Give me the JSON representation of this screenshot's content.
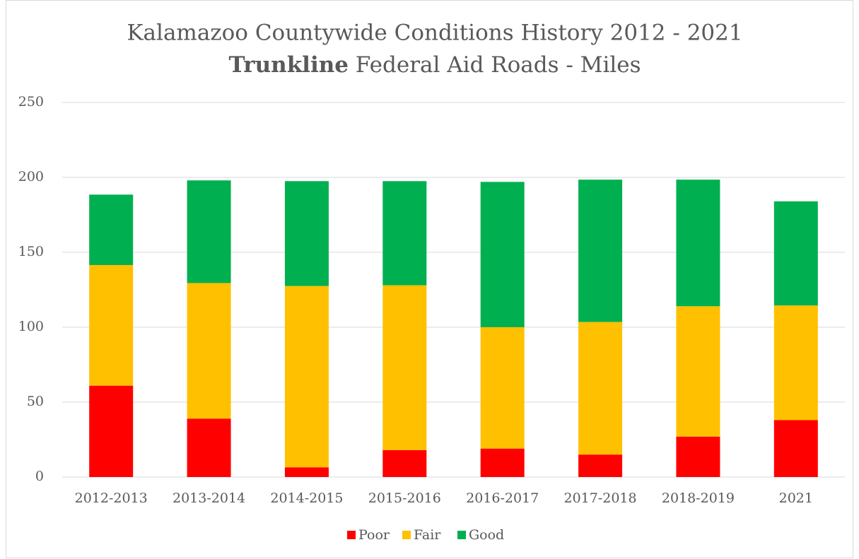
{
  "chart_data": {
    "type": "stacked_bar",
    "title": "Kalamazoo Countywide Conditions History 2012 - 2021",
    "subtitle_bold": "Trunkline",
    "subtitle": "Federal Aid Roads - Miles",
    "categories": [
      "2012-2013",
      "2013-2014",
      "2014-2015",
      "2015-2016",
      "2016-2017",
      "2017-2018",
      "2018-2019",
      "2021"
    ],
    "series": [
      {
        "name": "Poor",
        "color": "#ff0000",
        "values": [
          61,
          39,
          6.5,
          18,
          19,
          15,
          27,
          38
        ]
      },
      {
        "name": "Fair",
        "color": "#ffc000",
        "values": [
          80.5,
          90.5,
          121,
          110,
          81,
          88.5,
          87,
          76.5
        ]
      },
      {
        "name": "Good",
        "color": "#00b050",
        "values": [
          47,
          68.5,
          70,
          69.5,
          97,
          95,
          84.5,
          69.5
        ]
      }
    ],
    "ylim": [
      0,
      250
    ],
    "yticks": [
      0,
      50,
      100,
      150,
      200,
      250
    ],
    "grid": true,
    "legend": "bottom"
  }
}
